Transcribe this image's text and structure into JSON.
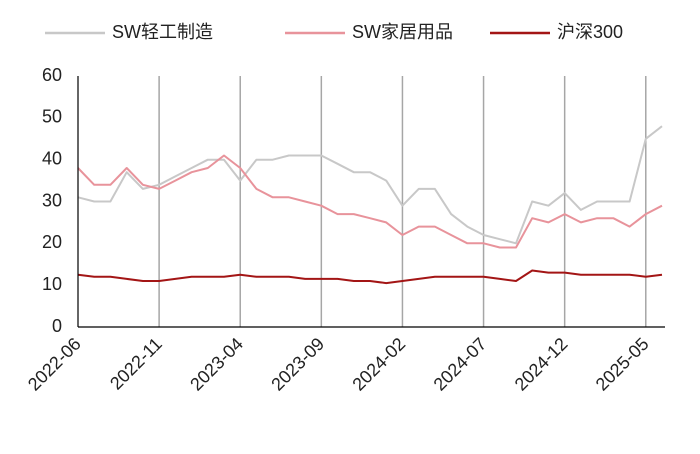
{
  "chart_data": {
    "type": "line",
    "x": [
      "2022-06",
      "2022-07",
      "2022-08",
      "2022-09",
      "2022-10",
      "2022-11",
      "2022-12",
      "2023-01",
      "2023-02",
      "2023-03",
      "2023-04",
      "2023-05",
      "2023-06",
      "2023-07",
      "2023-08",
      "2023-09",
      "2023-10",
      "2023-11",
      "2023-12",
      "2024-01",
      "2024-02",
      "2024-03",
      "2024-04",
      "2024-05",
      "2024-06",
      "2024-07",
      "2024-08",
      "2024-09",
      "2024-10",
      "2024-11",
      "2024-12",
      "2025-01",
      "2025-02",
      "2025-03",
      "2025-04",
      "2025-05",
      "2025-06"
    ],
    "series": [
      {
        "name": "SW轻工制造",
        "color": "#c8c8c8",
        "values": [
          31,
          30,
          30,
          37,
          33,
          34,
          36,
          38,
          40,
          40,
          35,
          40,
          40,
          41,
          41,
          41,
          39,
          37,
          37,
          35,
          29,
          33,
          33,
          27,
          24,
          22,
          21,
          20,
          30,
          29,
          32,
          28,
          30,
          30,
          30,
          45,
          48
        ]
      },
      {
        "name": "SW家居用品",
        "color": "#e8939b",
        "values": [
          38,
          34,
          34,
          38,
          34,
          33,
          35,
          37,
          38,
          41,
          38,
          33,
          31,
          31,
          30,
          29,
          27,
          27,
          26,
          25,
          22,
          24,
          24,
          22,
          20,
          20,
          19,
          19,
          26,
          25,
          27,
          25,
          26,
          26,
          24,
          27,
          29
        ]
      },
      {
        "name": "沪深300",
        "color": "#a31515",
        "values": [
          12.5,
          12,
          12,
          11.5,
          11,
          11,
          11.5,
          12,
          12,
          12,
          12.5,
          12,
          12,
          12,
          11.5,
          11.5,
          11.5,
          11,
          11,
          10.5,
          11,
          11.5,
          12,
          12,
          12,
          12,
          11.5,
          11,
          13.5,
          13,
          13,
          12.5,
          12.5,
          12.5,
          12.5,
          12,
          12.5
        ]
      }
    ],
    "xlim": [
      "2022-06",
      "2025-06"
    ],
    "xticks": [
      "2022-06",
      "2022-11",
      "2023-04",
      "2023-09",
      "2024-02",
      "2024-07",
      "2024-12",
      "2025-05"
    ],
    "ylim": [
      0,
      60
    ],
    "yticks": [
      0,
      10,
      20,
      30,
      40,
      50,
      60
    ],
    "grid": "x",
    "legend": "top"
  }
}
